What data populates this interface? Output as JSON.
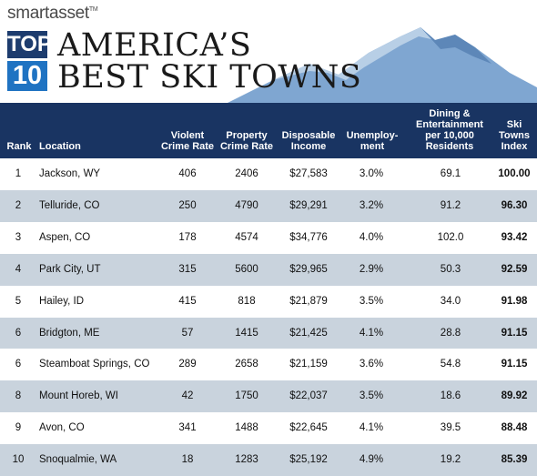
{
  "brand": {
    "name": "smartasset",
    "tm": "TM"
  },
  "badge": {
    "top": "TOP",
    "number": "10"
  },
  "title": {
    "line1": "AMERICA’S",
    "line2": "BEST SKI TOWNS"
  },
  "colors": {
    "header_bg": "#193462",
    "row_alt": "#c9d3dd",
    "mountain": "#7fa6d1",
    "badge_dark": "#1d3c6e",
    "badge_light": "#1f73c2"
  },
  "table": {
    "headers": {
      "rank": "Rank",
      "location": "Location",
      "violent": [
        "Violent",
        "Crime Rate"
      ],
      "property": [
        "Property",
        "Crime Rate"
      ],
      "income": [
        "Disposable",
        "Income"
      ],
      "unemployment": [
        "Unemploy-",
        "ment"
      ],
      "dining": [
        "Dining &",
        "Entertainment",
        "per 10,000",
        "Residents"
      ],
      "index": [
        "Ski",
        "Towns",
        "Index"
      ]
    },
    "rows": [
      {
        "rank": "1",
        "location": "Jackson, WY",
        "violent": "406",
        "property": "2406",
        "income": "$27,583",
        "unemployment": "3.0%",
        "dining": "69.1",
        "index": "100.00"
      },
      {
        "rank": "2",
        "location": "Telluride, CO",
        "violent": "250",
        "property": "4790",
        "income": "$29,291",
        "unemployment": "3.2%",
        "dining": "91.2",
        "index": "96.30"
      },
      {
        "rank": "3",
        "location": "Aspen, CO",
        "violent": "178",
        "property": "4574",
        "income": "$34,776",
        "unemployment": "4.0%",
        "dining": "102.0",
        "index": "93.42"
      },
      {
        "rank": "4",
        "location": "Park City, UT",
        "violent": "315",
        "property": "5600",
        "income": "$29,965",
        "unemployment": "2.9%",
        "dining": "50.3",
        "index": "92.59"
      },
      {
        "rank": "5",
        "location": "Hailey, ID",
        "violent": "415",
        "property": "818",
        "income": "$21,879",
        "unemployment": "3.5%",
        "dining": "34.0",
        "index": "91.98"
      },
      {
        "rank": "6",
        "location": "Bridgton, ME",
        "violent": "57",
        "property": "1415",
        "income": "$21,425",
        "unemployment": "4.1%",
        "dining": "28.8",
        "index": "91.15"
      },
      {
        "rank": "6",
        "location": "Steamboat Springs, CO",
        "violent": "289",
        "property": "2658",
        "income": "$21,159",
        "unemployment": "3.6%",
        "dining": "54.8",
        "index": "91.15"
      },
      {
        "rank": "8",
        "location": "Mount Horeb, WI",
        "violent": "42",
        "property": "1750",
        "income": "$22,037",
        "unemployment": "3.5%",
        "dining": "18.6",
        "index": "89.92"
      },
      {
        "rank": "9",
        "location": "Avon, CO",
        "violent": "341",
        "property": "1488",
        "income": "$22,645",
        "unemployment": "4.1%",
        "dining": "39.5",
        "index": "88.48"
      },
      {
        "rank": "10",
        "location": "Snoqualmie, WA",
        "violent": "18",
        "property": "1283",
        "income": "$25,192",
        "unemployment": "4.9%",
        "dining": "19.2",
        "index": "85.39"
      }
    ]
  }
}
